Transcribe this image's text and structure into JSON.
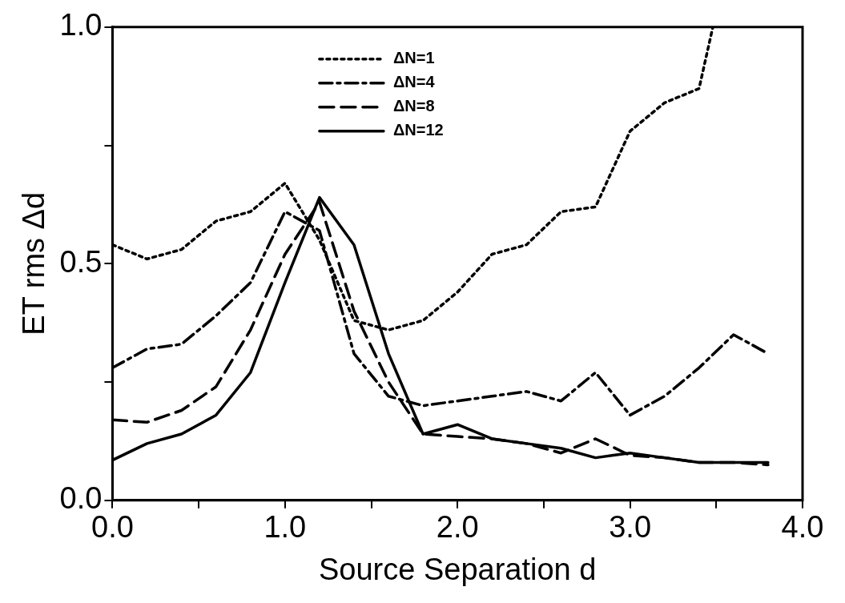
{
  "chart_data": {
    "type": "line",
    "xlabel": "Source Separation d",
    "ylabel": "ET rms Δd",
    "xlim": [
      0,
      4
    ],
    "ylim": [
      0,
      1
    ],
    "xticks": [
      {
        "value": 0,
        "label": "0.0"
      },
      {
        "value": 0.5,
        "label": null
      },
      {
        "value": 1,
        "label": "1.0"
      },
      {
        "value": 1.5,
        "label": null
      },
      {
        "value": 2,
        "label": "2.0"
      },
      {
        "value": 2.5,
        "label": null
      },
      {
        "value": 3,
        "label": "3.0"
      },
      {
        "value": 3.5,
        "label": null
      },
      {
        "value": 4,
        "label": "4.0"
      }
    ],
    "yticks": [
      {
        "value": 0,
        "label": "0.0"
      },
      {
        "value": 0.25,
        "label": null
      },
      {
        "value": 0.5,
        "label": "0.5"
      },
      {
        "value": 0.75,
        "label": null
      },
      {
        "value": 1,
        "label": "1.0"
      }
    ],
    "legend": "top",
    "marker": "none",
    "series": [
      {
        "name": "ΔN=1",
        "color": "#000000",
        "line_style": "dotted",
        "x": [
          0,
          0.2,
          0.4,
          0.6,
          0.8,
          1.0,
          1.2,
          1.4,
          1.6,
          1.8,
          2.0,
          2.2,
          2.4,
          2.6,
          2.8,
          3.0,
          3.2,
          3.4,
          3.48
        ],
        "values": [
          0.54,
          0.51,
          0.53,
          0.59,
          0.61,
          0.67,
          0.55,
          0.38,
          0.36,
          0.38,
          0.44,
          0.52,
          0.54,
          0.61,
          0.62,
          0.78,
          0.84,
          0.87,
          1.0
        ]
      },
      {
        "name": "ΔN=4",
        "color": "#000000",
        "line_style": "dashdot",
        "x": [
          0,
          0.2,
          0.4,
          0.6,
          0.8,
          1.0,
          1.2,
          1.4,
          1.6,
          1.8,
          2.0,
          2.2,
          2.4,
          2.6,
          2.8,
          3.0,
          3.2,
          3.4,
          3.6,
          3.8
        ],
        "values": [
          0.28,
          0.32,
          0.33,
          0.39,
          0.46,
          0.61,
          0.57,
          0.31,
          0.22,
          0.2,
          0.21,
          0.22,
          0.23,
          0.21,
          0.27,
          0.18,
          0.22,
          0.28,
          0.35,
          0.31
        ]
      },
      {
        "name": "ΔN=8",
        "color": "#000000",
        "line_style": "dashed",
        "x": [
          0,
          0.2,
          0.4,
          0.6,
          0.8,
          1.0,
          1.2,
          1.4,
          1.6,
          1.8,
          2.0,
          2.2,
          2.4,
          2.6,
          2.8,
          3.0,
          3.2,
          3.4,
          3.6,
          3.8
        ],
        "values": [
          0.17,
          0.165,
          0.19,
          0.24,
          0.36,
          0.52,
          0.63,
          0.4,
          0.25,
          0.14,
          0.135,
          0.13,
          0.12,
          0.1,
          0.13,
          0.095,
          0.09,
          0.08,
          0.08,
          0.075
        ]
      },
      {
        "name": "ΔN=12",
        "color": "#000000",
        "line_style": "solid",
        "x": [
          0,
          0.2,
          0.4,
          0.6,
          0.8,
          1.0,
          1.2,
          1.4,
          1.6,
          1.8,
          2.0,
          2.2,
          2.4,
          2.6,
          2.8,
          3.0,
          3.2,
          3.4,
          3.6,
          3.8
        ],
        "values": [
          0.085,
          0.12,
          0.14,
          0.18,
          0.27,
          0.46,
          0.64,
          0.54,
          0.31,
          0.14,
          0.16,
          0.13,
          0.12,
          0.11,
          0.09,
          0.1,
          0.09,
          0.08,
          0.08,
          0.08
        ]
      }
    ]
  }
}
